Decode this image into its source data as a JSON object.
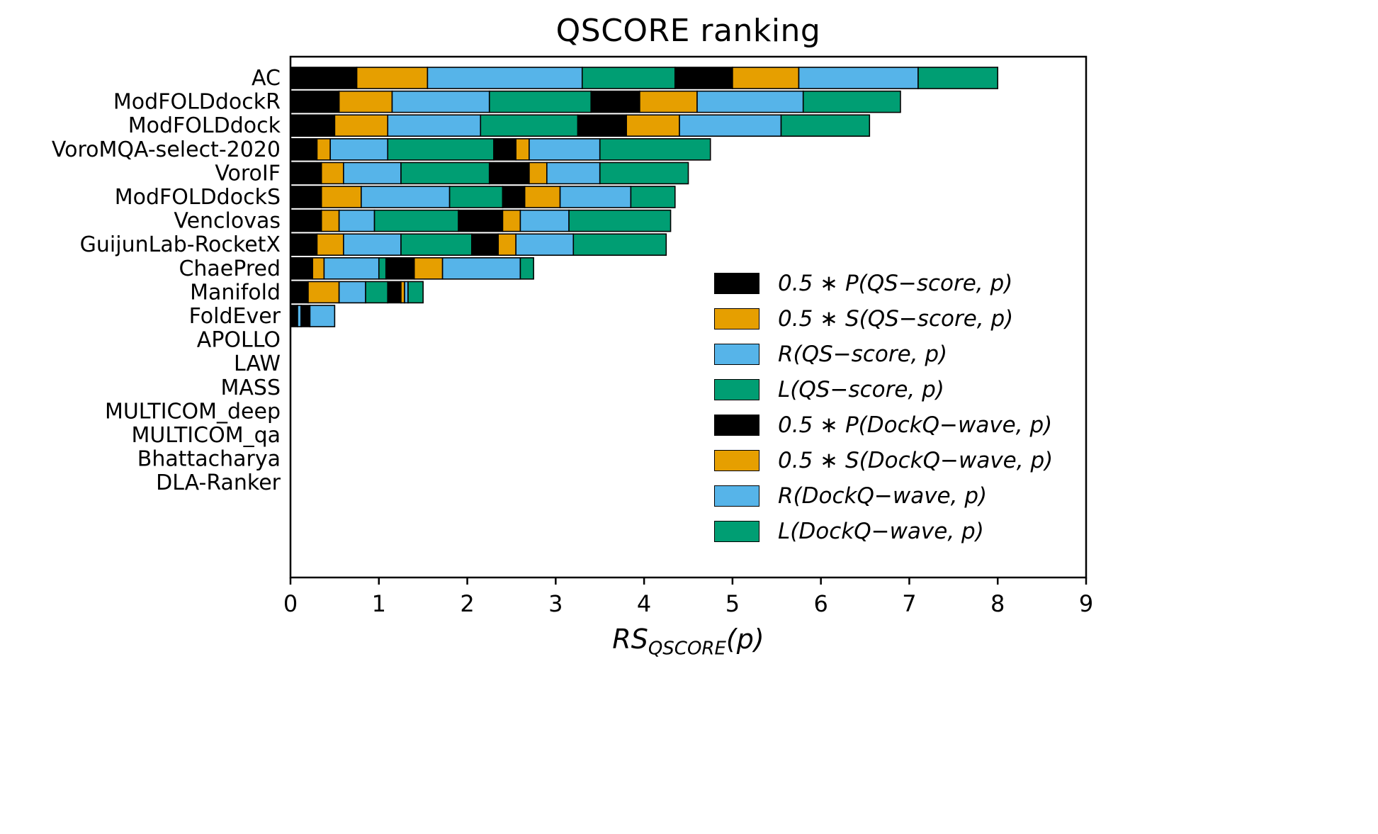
{
  "title": "QSCORE ranking",
  "xlabel": {
    "main": "RS",
    "sub": "QSCORE",
    "suffix": "(p)"
  },
  "chart_data": {
    "type": "bar",
    "orientation": "horizontal",
    "title": "QSCORE ranking",
    "xlabel": "RS_QSCORE(p)",
    "xlim": [
      0,
      9
    ],
    "xticks": [
      "0",
      "1",
      "2",
      "3",
      "4",
      "5",
      "6",
      "7",
      "8",
      "9"
    ],
    "grid": false,
    "legend_position": "center-right",
    "categories": [
      "AC",
      "ModFOLDdockR",
      "ModFOLDdock",
      "VoroMQA-select-2020",
      "VoroIF",
      "ModFOLDdockS",
      "Venclovas",
      "GuijunLab-RocketX",
      "ChaePred",
      "Manifold",
      "FoldEver",
      "APOLLO",
      "LAW",
      "MASS",
      "MULTICOM_deep",
      "MULTICOM_qa",
      "Bhattacharya",
      "DLA-Ranker"
    ],
    "series": [
      {
        "name": "0.5*P(QS-score,p)",
        "label": "0.5 ∗ P(QS−score, p)",
        "color": "#000000",
        "values": [
          0.75,
          0.55,
          0.5,
          0.3,
          0.35,
          0.35,
          0.35,
          0.3,
          0.25,
          0.2,
          0.08,
          0,
          0,
          0,
          0,
          0,
          0,
          0
        ]
      },
      {
        "name": "0.5*S(QS-score,p)",
        "label": "0.5 ∗ S(QS−score, p)",
        "color": "#E69F00",
        "values": [
          0.8,
          0.6,
          0.6,
          0.15,
          0.25,
          0.45,
          0.2,
          0.3,
          0.13,
          0.35,
          0.0,
          0,
          0,
          0,
          0,
          0,
          0,
          0
        ]
      },
      {
        "name": "R(QS-score,p)",
        "label": "R(QS−score, p)",
        "color": "#56B4E9",
        "values": [
          1.75,
          1.1,
          1.05,
          0.65,
          0.65,
          1.0,
          0.4,
          0.65,
          0.62,
          0.3,
          0.04,
          0,
          0,
          0,
          0,
          0,
          0,
          0
        ]
      },
      {
        "name": "L(QS-score,p)",
        "label": "L(QS−score, p)",
        "color": "#009E73",
        "values": [
          1.05,
          1.15,
          1.1,
          1.2,
          1.0,
          0.6,
          0.95,
          0.8,
          0.08,
          0.25,
          0.0,
          0,
          0,
          0,
          0,
          0,
          0,
          0
        ]
      },
      {
        "name": "0.5*P(DockQ-wave,p)",
        "label": "0.5 ∗ P(DockQ−wave, p)",
        "color": "#000000",
        "values": [
          0.65,
          0.55,
          0.55,
          0.25,
          0.45,
          0.25,
          0.5,
          0.3,
          0.32,
          0.15,
          0.1,
          0,
          0,
          0,
          0,
          0,
          0,
          0
        ]
      },
      {
        "name": "0.5*S(DockQ-wave,p)",
        "label": "0.5 ∗ S(DockQ−wave, p)",
        "color": "#E69F00",
        "values": [
          0.75,
          0.65,
          0.6,
          0.15,
          0.2,
          0.4,
          0.2,
          0.2,
          0.32,
          0.04,
          0.0,
          0,
          0,
          0,
          0,
          0,
          0,
          0
        ]
      },
      {
        "name": "R(DockQ-wave,p)",
        "label": "R(DockQ−wave, p)",
        "color": "#56B4E9",
        "values": [
          1.35,
          1.2,
          1.15,
          0.8,
          0.6,
          0.8,
          0.55,
          0.65,
          0.88,
          0.04,
          0.28,
          0,
          0,
          0,
          0,
          0,
          0,
          0
        ]
      },
      {
        "name": "L(DockQ-wave,p)",
        "label": "L(DockQ−wave, p)",
        "color": "#009E73",
        "values": [
          0.9,
          1.1,
          1.0,
          1.25,
          1.0,
          0.5,
          1.15,
          1.05,
          0.15,
          0.17,
          0.0,
          0,
          0,
          0,
          0,
          0,
          0,
          0
        ]
      }
    ]
  }
}
